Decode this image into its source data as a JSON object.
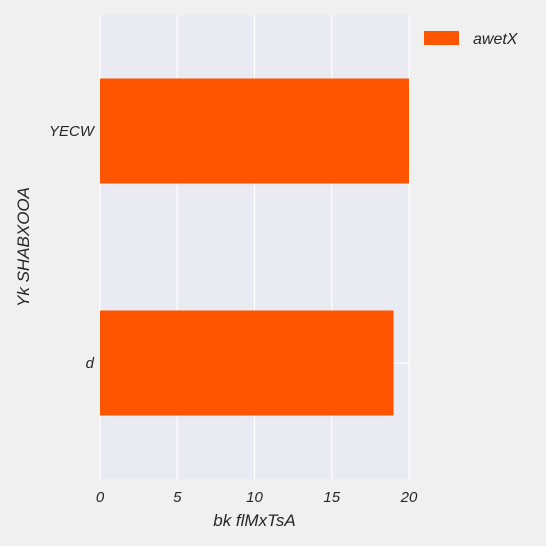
{
  "chart_data": {
    "type": "bar",
    "orientation": "horizontal",
    "categories": [
      "YECW",
      "d"
    ],
    "series": [
      {
        "name": "awetX",
        "values": [
          20,
          19
        ],
        "color": "#ff5500"
      }
    ],
    "xlabel": "bk flMxTsA",
    "ylabel": "Yk SHABXOOA",
    "xlim": [
      0,
      20
    ],
    "xticks": [
      0,
      5,
      10,
      15,
      20
    ],
    "grid": true,
    "legend_position": "top-right",
    "background": "#eaeaf2"
  }
}
